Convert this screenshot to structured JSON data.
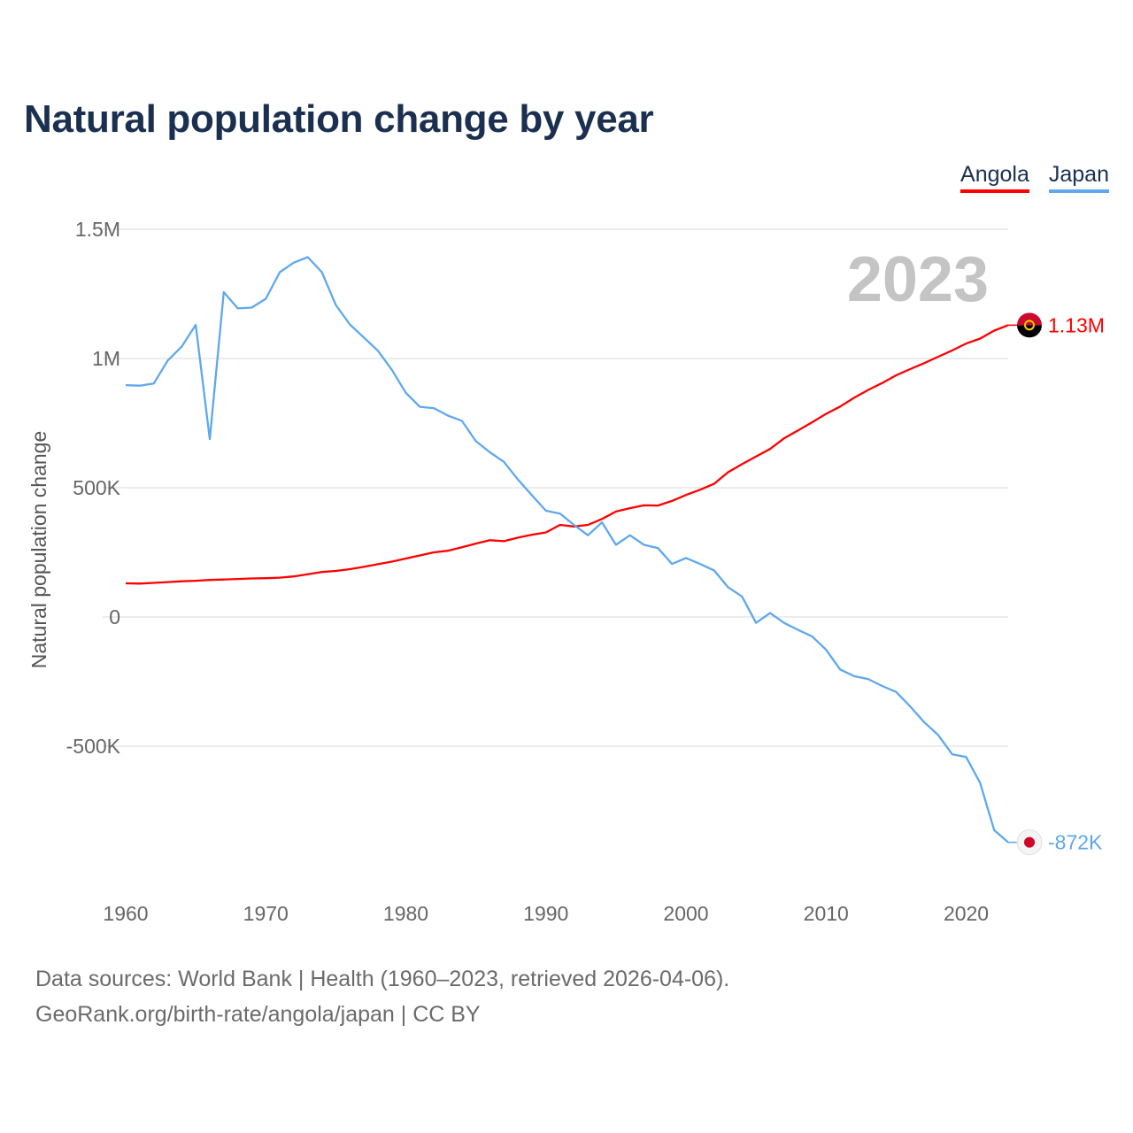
{
  "title": "Natural population change by year",
  "legend": [
    {
      "label": "Angola",
      "color": "#ff0000"
    },
    {
      "label": "Japan",
      "color": "#5ea8ee"
    }
  ],
  "footer": {
    "line1": "Data sources: World Bank | Health (1960–2023, retrieved 2026-04-06).",
    "line2": "GeoRank.org/birth-rate/angola/japan | CC BY"
  },
  "chart_data": {
    "type": "line",
    "title": "Natural population change by year",
    "xlabel": "",
    "ylabel": "Natural population change",
    "year_label": "2023",
    "x": [
      1960,
      1961,
      1962,
      1963,
      1964,
      1965,
      1966,
      1967,
      1968,
      1969,
      1970,
      1971,
      1972,
      1973,
      1974,
      1975,
      1976,
      1977,
      1978,
      1979,
      1980,
      1981,
      1982,
      1983,
      1984,
      1985,
      1986,
      1987,
      1988,
      1989,
      1990,
      1991,
      1992,
      1993,
      1994,
      1995,
      1996,
      1997,
      1998,
      1999,
      2000,
      2001,
      2002,
      2003,
      2004,
      2005,
      2006,
      2007,
      2008,
      2009,
      2010,
      2011,
      2012,
      2013,
      2014,
      2015,
      2016,
      2017,
      2018,
      2019,
      2020,
      2021,
      2022,
      2023
    ],
    "xticks": [
      1960,
      1970,
      1980,
      1990,
      2000,
      2010,
      2020
    ],
    "xlim": [
      1960,
      2023
    ],
    "yticks": [
      {
        "v": 1500000,
        "label": "1.5M"
      },
      {
        "v": 1000000,
        "label": "1M"
      },
      {
        "v": 500000,
        "label": "500K"
      },
      {
        "v": 0,
        "label": "0"
      },
      {
        "v": -500000,
        "label": "-500K"
      }
    ],
    "ylim": [
      -1000000,
      1500000
    ],
    "grid": true,
    "legend_position": "top-right",
    "series": [
      {
        "name": "Angola",
        "color": "#ff0000",
        "end_label": "1.13M",
        "flag": "angola",
        "values": [
          130000,
          129000,
          132000,
          135000,
          138000,
          140000,
          143000,
          145000,
          147000,
          149000,
          150000,
          152000,
          157000,
          165000,
          174000,
          178000,
          185000,
          194000,
          204000,
          214000,
          226000,
          238000,
          250000,
          256000,
          270000,
          284000,
          297000,
          293000,
          307000,
          318000,
          327000,
          356000,
          350000,
          356000,
          379000,
          408000,
          421000,
          432000,
          431000,
          449000,
          472000,
          492000,
          515000,
          560000,
          591000,
          621000,
          650000,
          691000,
          722000,
          753000,
          786000,
          814000,
          848000,
          878000,
          905000,
          935000,
          959000,
          982000,
          1007000,
          1031000,
          1058000,
          1077000,
          1108000,
          1129000
        ]
      },
      {
        "name": "Japan",
        "color": "#5ea8ee",
        "end_label": "-872K",
        "flag": "japan",
        "values": [
          897000,
          895000,
          903000,
          992000,
          1046000,
          1130000,
          688000,
          1257000,
          1194000,
          1197000,
          1231000,
          1334000,
          1371000,
          1392000,
          1334000,
          1207000,
          1132000,
          1081000,
          1030000,
          956000,
          867000,
          813000,
          808000,
          779000,
          759000,
          680000,
          637000,
          600000,
          532000,
          471000,
          411000,
          400000,
          356000,
          316000,
          366000,
          279000,
          316000,
          279000,
          266000,
          205000,
          228000,
          205000,
          180000,
          115000,
          79000,
          -23000,
          15000,
          -23000,
          -50000,
          -75000,
          -127000,
          -203000,
          -229000,
          -240000,
          -267000,
          -290000,
          -346000,
          -407000,
          -457000,
          -531000,
          -542000,
          -642000,
          -825000,
          -872000
        ]
      }
    ]
  }
}
